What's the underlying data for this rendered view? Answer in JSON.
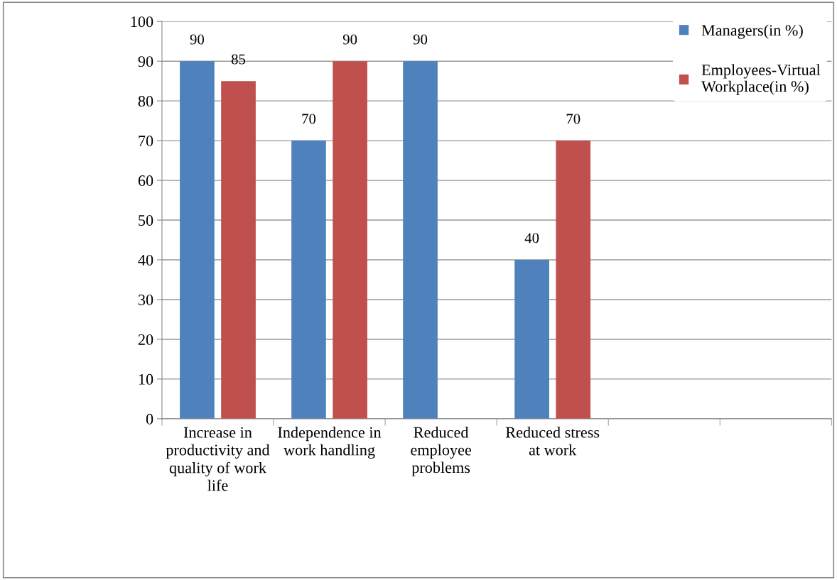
{
  "chart_data": {
    "type": "bar",
    "categories": [
      "Increase in productivity and quality of work life",
      "Independence in work handling",
      "Reduced employee problems",
      "Reduced stress at work",
      null,
      null
    ],
    "series": [
      {
        "name": "Managers(in %)",
        "color": "#4f81bd",
        "values": [
          90,
          70,
          90,
          40,
          null,
          null
        ]
      },
      {
        "name": "Employees-Virtual\nWorkplace(in %)",
        "color": "#c0504d",
        "values": [
          85,
          90,
          null,
          70,
          null,
          null
        ]
      }
    ],
    "ylim": [
      0,
      100
    ],
    "yticks": [
      0,
      10,
      20,
      30,
      40,
      50,
      60,
      70,
      80,
      90,
      100
    ],
    "grid": "y",
    "legend": "top right",
    "data_labels": true
  }
}
